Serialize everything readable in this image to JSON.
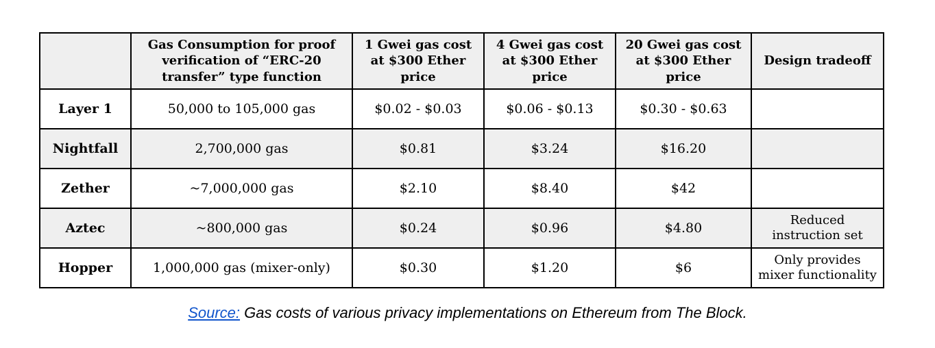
{
  "table": {
    "header_bg": "#efefef",
    "stripe_bg": "#efefef",
    "border_color": "#000000",
    "columns": [
      {
        "label": ""
      },
      {
        "label": "Gas Consumption for proof verification of “ERC-20 transfer” type function"
      },
      {
        "label": "1 Gwei gas cost at $300 Ether price"
      },
      {
        "label": "4 Gwei gas cost at $300 Ether price"
      },
      {
        "label": "20 Gwei gas cost at $300 Ether price"
      },
      {
        "label": "Design tradeoff"
      }
    ],
    "rows": [
      {
        "name": "Layer 1",
        "gas": "50,000 to 105,000 gas",
        "cost_1gwei": "$0.02 - $0.03",
        "cost_4gwei": "$0.06 - $0.13",
        "cost_20gwei": "$0.30 - $0.63",
        "tradeoff": ""
      },
      {
        "name": "Nightfall",
        "gas": "2,700,000 gas",
        "cost_1gwei": "$0.81",
        "cost_4gwei": "$3.24",
        "cost_20gwei": "$16.20",
        "tradeoff": ""
      },
      {
        "name": "Zether",
        "gas": "~7,000,000 gas",
        "cost_1gwei": "$2.10",
        "cost_4gwei": "$8.40",
        "cost_20gwei": "$42",
        "tradeoff": ""
      },
      {
        "name": "Aztec",
        "gas": "~800,000 gas",
        "cost_1gwei": "$0.24",
        "cost_4gwei": "$0.96",
        "cost_20gwei": "$4.80",
        "tradeoff": "Reduced instruction set"
      },
      {
        "name": "Hopper",
        "gas": "1,000,000 gas (mixer-only)",
        "cost_1gwei": "$0.30",
        "cost_4gwei": "$1.20",
        "cost_20gwei": "$6",
        "tradeoff": "Only provides mixer functionality"
      }
    ]
  },
  "caption": {
    "link_text": "Source:",
    "link_color": "#1155cc",
    "text": " Gas costs of various privacy implementations on Ethereum from The Block."
  }
}
